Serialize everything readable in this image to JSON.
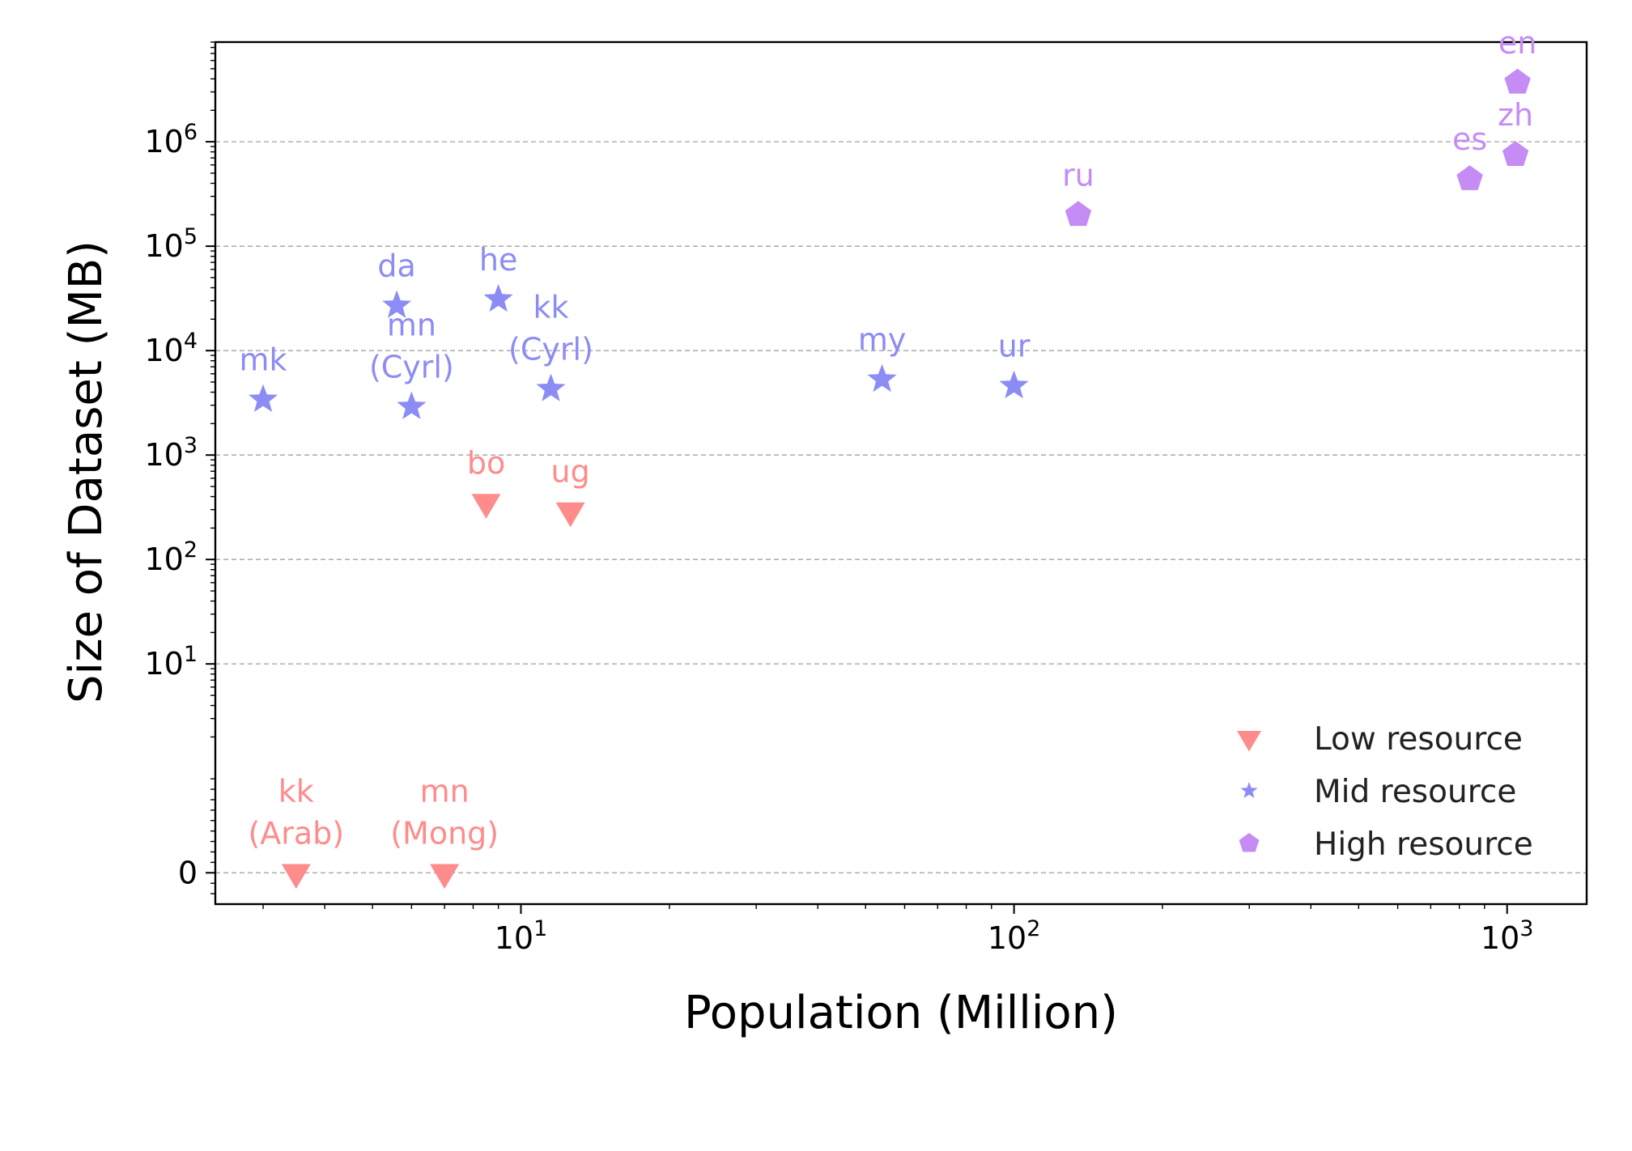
{
  "chart_data": {
    "type": "scatter",
    "title": "",
    "xlabel": "Population (Million)",
    "ylabel": "Size of Dataset (MB)",
    "x_scale": "log",
    "y_scale": "symlog",
    "xlim": [
      2.4,
      1450
    ],
    "ylim": [
      -0.3,
      9000000
    ],
    "x_ticks": [
      {
        "value": 10,
        "base": "10",
        "exp": "1"
      },
      {
        "value": 100,
        "base": "10",
        "exp": "2"
      },
      {
        "value": 1000,
        "base": "10",
        "exp": "3"
      }
    ],
    "y_ticks": [
      {
        "value": 0,
        "base": "0",
        "exp": ""
      },
      {
        "value": 10,
        "base": "10",
        "exp": "1"
      },
      {
        "value": 100,
        "base": "10",
        "exp": "2"
      },
      {
        "value": 1000,
        "base": "10",
        "exp": "3"
      },
      {
        "value": 10000,
        "base": "10",
        "exp": "4"
      },
      {
        "value": 100000,
        "base": "10",
        "exp": "5"
      },
      {
        "value": 1000000,
        "base": "10",
        "exp": "6"
      }
    ],
    "grid": "horizontal dashed at y major ticks",
    "legend_position": "lower-right",
    "series": [
      {
        "name": "Low resource",
        "marker": "triangle-down",
        "color": "#ff8c8c",
        "points": [
          {
            "label": [
              "kk",
              "(Arab)"
            ],
            "x": 3.5,
            "y": 0
          },
          {
            "label": [
              "mn",
              "(Mong)"
            ],
            "x": 7.0,
            "y": 0
          },
          {
            "label": [
              "bo"
            ],
            "x": 8.5,
            "y": 350
          },
          {
            "label": [
              "ug"
            ],
            "x": 12.6,
            "y": 290
          }
        ]
      },
      {
        "name": "Mid resource",
        "marker": "star",
        "color": "#8c8cf5",
        "points": [
          {
            "label": [
              "mk"
            ],
            "x": 3.0,
            "y": 3400
          },
          {
            "label": [
              "da"
            ],
            "x": 5.6,
            "y": 27000
          },
          {
            "label": [
              "mn",
              "(Cyrl)"
            ],
            "x": 6.0,
            "y": 2900
          },
          {
            "label": [
              "he"
            ],
            "x": 9.0,
            "y": 31000
          },
          {
            "label": [
              "kk",
              "(Cyrl)"
            ],
            "x": 11.5,
            "y": 4300
          },
          {
            "label": [
              "my"
            ],
            "x": 54,
            "y": 5300
          },
          {
            "label": [
              "ur"
            ],
            "x": 100,
            "y": 4600
          }
        ]
      },
      {
        "name": "High resource",
        "marker": "pentagon",
        "color": "#c58cf5",
        "points": [
          {
            "label": [
              "ru"
            ],
            "x": 135,
            "y": 200000
          },
          {
            "label": [
              "es"
            ],
            "x": 840,
            "y": 440000
          },
          {
            "label": [
              "zh"
            ],
            "x": 1040,
            "y": 750000
          },
          {
            "label": [
              "en"
            ],
            "x": 1050,
            "y": 3700000
          }
        ]
      }
    ]
  }
}
